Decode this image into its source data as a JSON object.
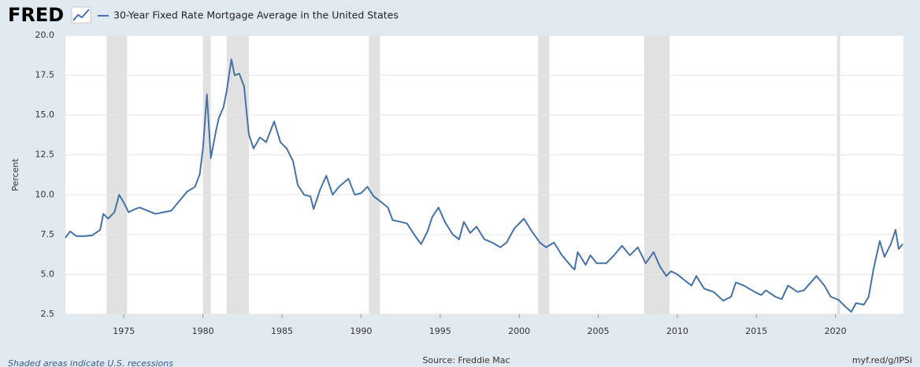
{
  "chart_data": {
    "type": "line",
    "logo": "FRED",
    "y_label": "Percent",
    "note": "Shaded areas indicate U.S. recessions",
    "source": "Source: Freddie Mac",
    "link": "myf.red/g/IPSi",
    "x": [
      1971.3,
      1971.6,
      1972.0,
      1972.5,
      1973.0,
      1973.5,
      1973.7,
      1974.0,
      1974.4,
      1974.7,
      1975.0,
      1975.3,
      1975.7,
      1976.0,
      1976.5,
      1977.0,
      1977.5,
      1978.0,
      1978.5,
      1979.0,
      1979.5,
      1979.8,
      1980.0,
      1980.25,
      1980.5,
      1980.8,
      1981.0,
      1981.3,
      1981.5,
      1981.8,
      1982.0,
      1982.3,
      1982.6,
      1982.9,
      1983.2,
      1983.6,
      1984.0,
      1984.5,
      1984.9,
      1985.3,
      1985.7,
      1986.0,
      1986.4,
      1986.8,
      1987.0,
      1987.4,
      1987.8,
      1988.2,
      1988.6,
      1989.2,
      1989.6,
      1990.0,
      1990.4,
      1990.8,
      1991.2,
      1991.7,
      1992.0,
      1992.5,
      1992.9,
      1993.5,
      1993.8,
      1994.2,
      1994.5,
      1994.9,
      1995.3,
      1995.8,
      1996.2,
      1996.5,
      1996.9,
      1997.3,
      1997.8,
      1998.3,
      1998.8,
      1999.2,
      1999.7,
      2000.3,
      2000.8,
      2001.3,
      2001.7,
      2002.2,
      2002.7,
      2003.3,
      2003.5,
      2003.7,
      2004.2,
      2004.5,
      2004.9,
      2005.5,
      2006.0,
      2006.5,
      2007.0,
      2007.5,
      2008.0,
      2008.5,
      2008.9,
      2009.3,
      2009.6,
      2010.0,
      2010.5,
      2010.9,
      2011.2,
      2011.7,
      2012.3,
      2012.9,
      2013.4,
      2013.7,
      2014.2,
      2014.9,
      2015.3,
      2015.6,
      2016.2,
      2016.6,
      2017.0,
      2017.6,
      2018.0,
      2018.8,
      2019.3,
      2019.7,
      2020.2,
      2020.6,
      2021.0,
      2021.3,
      2021.8,
      2022.1,
      2022.4,
      2022.8,
      2023.1,
      2023.5,
      2023.8,
      2024.0,
      2024.25
    ],
    "series": [
      {
        "name": "30-Year Fixed Rate Mortgage Average in the United States",
        "color": "#4572a7",
        "values": [
          7.3,
          7.7,
          7.4,
          7.4,
          7.45,
          7.8,
          8.8,
          8.5,
          8.9,
          10.0,
          9.5,
          8.9,
          9.1,
          9.2,
          9.0,
          8.8,
          8.9,
          9.0,
          9.6,
          10.2,
          10.5,
          11.3,
          12.9,
          16.3,
          12.3,
          13.9,
          14.8,
          15.5,
          16.5,
          18.5,
          17.5,
          17.6,
          16.8,
          13.8,
          12.9,
          13.6,
          13.3,
          14.6,
          13.3,
          12.9,
          12.1,
          10.6,
          10.0,
          9.9,
          9.1,
          10.3,
          11.2,
          10.0,
          10.5,
          11.0,
          10.0,
          10.1,
          10.5,
          9.9,
          9.6,
          9.2,
          8.4,
          8.3,
          8.2,
          7.3,
          6.9,
          7.7,
          8.6,
          9.2,
          8.3,
          7.5,
          7.2,
          8.3,
          7.6,
          8.0,
          7.2,
          7.0,
          6.7,
          7.0,
          7.9,
          8.5,
          7.7,
          7.0,
          6.7,
          7.0,
          6.2,
          5.5,
          5.3,
          6.4,
          5.6,
          6.2,
          5.7,
          5.7,
          6.2,
          6.8,
          6.2,
          6.7,
          5.7,
          6.4,
          5.5,
          4.9,
          5.2,
          5.0,
          4.6,
          4.3,
          4.9,
          4.1,
          3.9,
          3.35,
          3.6,
          4.5,
          4.3,
          3.9,
          3.7,
          4.0,
          3.6,
          3.45,
          4.3,
          3.9,
          4.0,
          4.9,
          4.3,
          3.6,
          3.4,
          3.0,
          2.65,
          3.2,
          3.1,
          3.6,
          5.3,
          7.1,
          6.1,
          6.9,
          7.8,
          6.6,
          6.9
        ]
      }
    ],
    "recessions": [
      [
        1973.9,
        1975.2
      ],
      [
        1980.0,
        1980.5
      ],
      [
        1981.5,
        1982.9
      ],
      [
        1990.5,
        1991.2
      ],
      [
        2001.2,
        2001.9
      ],
      [
        2007.9,
        2009.5
      ],
      [
        2020.1,
        2020.3
      ]
    ],
    "recession_color": "#e1e1e1",
    "xlim": [
      1971.3,
      2024.3
    ],
    "xticks": [
      1975,
      1980,
      1985,
      1990,
      1995,
      2000,
      2005,
      2010,
      2015,
      2020
    ],
    "ylim": [
      2.5,
      20
    ],
    "yticks": [
      {
        "value": 2.5,
        "label": "2.5"
      },
      {
        "value": 5,
        "label": "5.0"
      },
      {
        "value": 7.5,
        "label": "7.5"
      },
      {
        "value": 10,
        "label": "10.0"
      },
      {
        "value": 12.5,
        "label": "12.5"
      },
      {
        "value": 15,
        "label": "15.0"
      },
      {
        "value": 17.5,
        "label": "17.5"
      },
      {
        "value": 20,
        "label": "20.0"
      }
    ],
    "grid": true
  }
}
